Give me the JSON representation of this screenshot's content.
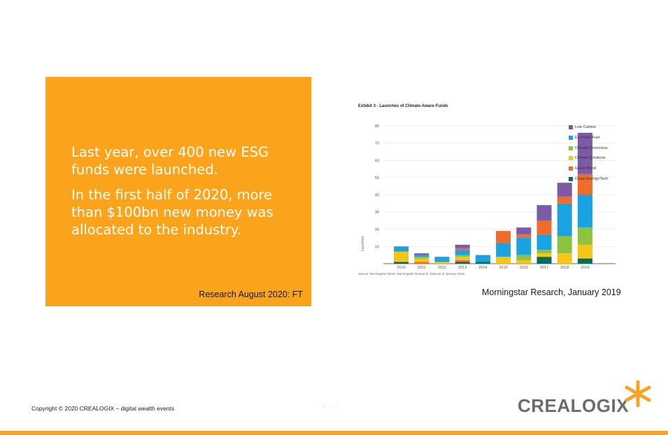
{
  "panel": {
    "paragraph1": "Last year, over 400 new ESG funds were launched.",
    "paragraph2": "In the first half of 2020, more than $100bn new money was allocated to the industry.",
    "source": "Research August 2020: FT"
  },
  "chart_caption": "Morningstar Resarch, January 2019",
  "footer": {
    "copyright": "Copyright © 2020 CREALOGIX – digital wealth events",
    "logo_text": "CREALOGIX"
  },
  "colors": {
    "panel_bg": "#fba31a",
    "accent": "#f6a425",
    "logo_gray": "#6c6c6c"
  },
  "chart_data": {
    "type": "bar",
    "stacked": true,
    "title": "Exhibit 3 - Launches of Climate-Aware Funds",
    "ylabel": "Launches",
    "xlabel": "",
    "source_note": "Source: Morningstar Direct. Morningstar Research. Data as of January 2019.",
    "categories": [
      "2010",
      "2011",
      "2012",
      "2013",
      "2014",
      "2015",
      "2016",
      "2017",
      "2018",
      "2019"
    ],
    "ylim": [
      0,
      80
    ],
    "yticks": [
      10,
      20,
      30,
      40,
      50,
      60,
      70,
      80
    ],
    "grid": true,
    "legend_position": "right",
    "series": [
      {
        "name": "Clean Energy/Tech",
        "color": "#0b6b5a",
        "values": [
          1,
          0,
          0,
          1,
          1,
          0,
          0,
          4,
          0,
          3
        ]
      },
      {
        "name": "Green Bond",
        "color": "#ef6c2a",
        "values": [
          0,
          1,
          0,
          1,
          0,
          0,
          0,
          0,
          0,
          0
        ]
      },
      {
        "name": "Climate Solutions",
        "color": "#f5c518",
        "values": [
          6,
          2,
          1,
          2,
          0,
          4,
          2,
          2,
          6,
          8
        ]
      },
      {
        "name": "Climate Conscious",
        "color": "#8cc43f",
        "values": [
          0,
          1,
          0,
          1,
          0,
          0,
          3,
          2,
          10,
          10
        ]
      },
      {
        "name": "Ex-Fossil Fuel",
        "color": "#1aa3e0",
        "values": [
          3,
          1,
          3,
          3,
          4,
          8,
          10,
          9,
          19,
          19
        ]
      },
      {
        "name": "Green Bond",
        "color": "#ef6c2a",
        "values": [
          0,
          0,
          0,
          1,
          0,
          7,
          2,
          8,
          4,
          12
        ]
      },
      {
        "name": "Low Carbon",
        "color": "#7d5aa6",
        "values": [
          0,
          1,
          0,
          2,
          0,
          0,
          4,
          9,
          8,
          24
        ]
      }
    ],
    "legend": [
      {
        "name": "Low Carbon",
        "color": "#7d5aa6"
      },
      {
        "name": "Ex-Fossil Fuel",
        "color": "#1aa3e0"
      },
      {
        "name": "Climate Conscious",
        "color": "#8cc43f"
      },
      {
        "name": "Climate Solutions",
        "color": "#f5c518"
      },
      {
        "name": "Green Bond",
        "color": "#ef6c2a"
      },
      {
        "name": "Clean Energy/Tech",
        "color": "#0b6b5a"
      }
    ]
  }
}
